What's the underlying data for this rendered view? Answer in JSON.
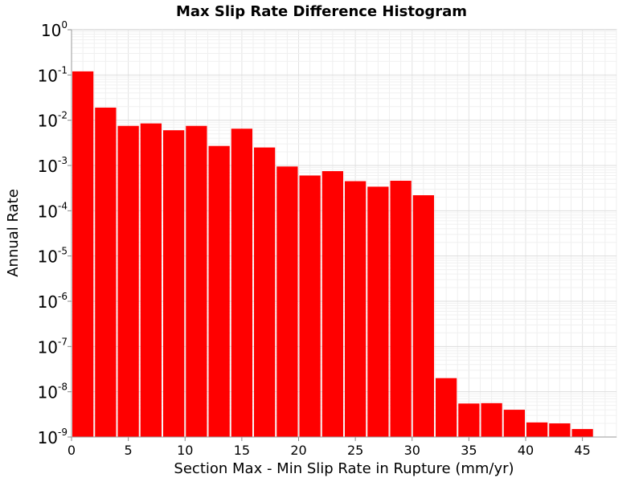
{
  "chart_data": {
    "type": "bar",
    "title": "Max Slip Rate Difference Histogram",
    "xlabel": "Section Max - Min Slip Rate in Rupture (mm/yr)",
    "ylabel": "Annual Rate",
    "x_scale": "linear",
    "y_scale": "log",
    "xlim": [
      0,
      48
    ],
    "ylim": [
      1e-09,
      1
    ],
    "grid": true,
    "legend": "none",
    "bar_color": "#ff0000",
    "x_ticks": [
      0,
      5,
      10,
      15,
      20,
      25,
      30,
      35,
      40,
      45
    ],
    "x_tick_labels": [
      "0",
      "5",
      "10",
      "15",
      "20",
      "25",
      "30",
      "35",
      "40",
      "45"
    ],
    "y_ticks": [
      {
        "value": 1,
        "base": "10",
        "exp": "0"
      },
      {
        "value": 0.1,
        "base": "10",
        "exp": "-1"
      },
      {
        "value": 0.01,
        "base": "10",
        "exp": "-2"
      },
      {
        "value": 0.001,
        "base": "10",
        "exp": "-3"
      },
      {
        "value": 0.0001,
        "base": "10",
        "exp": "-4"
      },
      {
        "value": 1e-05,
        "base": "10",
        "exp": "-5"
      },
      {
        "value": 1e-06,
        "base": "10",
        "exp": "-6"
      },
      {
        "value": 1e-07,
        "base": "10",
        "exp": "-7"
      },
      {
        "value": 1e-08,
        "base": "10",
        "exp": "-8"
      },
      {
        "value": 1e-09,
        "base": "10",
        "exp": "-9"
      }
    ],
    "bin_width": 2,
    "x": [
      1,
      3,
      5,
      7,
      9,
      11,
      13,
      15,
      17,
      19,
      21,
      23,
      25,
      27,
      29,
      31,
      33,
      35,
      37,
      39,
      41,
      43,
      45
    ],
    "values": [
      0.12,
      0.019,
      0.0075,
      0.0085,
      0.006,
      0.0075,
      0.0027,
      0.0065,
      0.0025,
      0.00095,
      0.0006,
      0.00075,
      0.00045,
      0.00034,
      0.00046,
      0.00022,
      2e-08,
      5.5e-09,
      5.6e-09,
      4e-09,
      2.1e-09,
      2e-09,
      1.5e-09
    ]
  }
}
